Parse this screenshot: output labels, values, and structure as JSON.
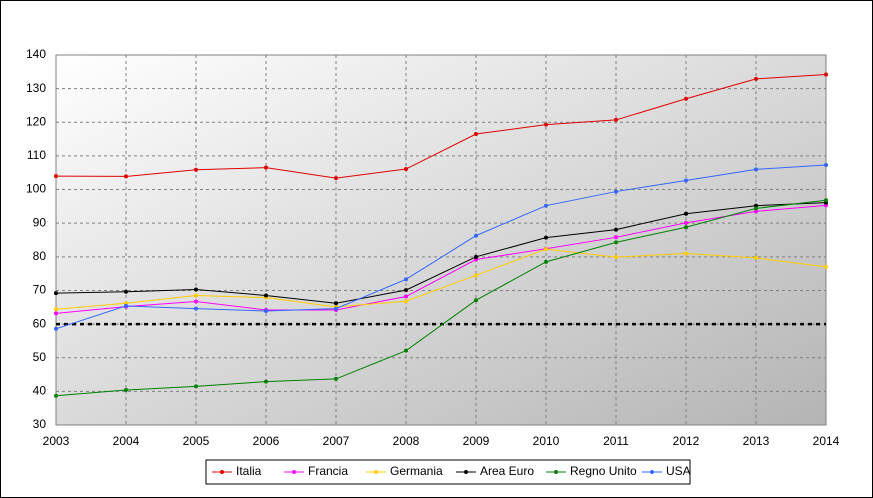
{
  "chart_data": {
    "type": "line",
    "x": [
      2003,
      2004,
      2005,
      2006,
      2007,
      2008,
      2009,
      2010,
      2011,
      2012,
      2013,
      2014
    ],
    "xlim": [
      2003,
      2014
    ],
    "xticks": [
      2003,
      2004,
      2005,
      2006,
      2007,
      2008,
      2009,
      2010,
      2011,
      2012,
      2013,
      2014
    ],
    "ylim": [
      30,
      140
    ],
    "yticks": [
      30,
      40,
      50,
      60,
      70,
      80,
      90,
      100,
      110,
      120,
      130,
      140
    ],
    "grid": true,
    "legend": "bottom",
    "reference_line": {
      "value": 60,
      "color": "#000000"
    },
    "series": [
      {
        "name": "Italia",
        "color": "#e00000",
        "values": [
          104.0,
          103.9,
          105.9,
          106.5,
          103.4,
          106.1,
          116.5,
          119.3,
          120.7,
          127.0,
          132.9,
          134.2
        ]
      },
      {
        "name": "Francia",
        "color": "#ff00ff",
        "values": [
          63.2,
          65.2,
          66.7,
          64.2,
          64.2,
          68.2,
          79.2,
          82.4,
          85.8,
          90.1,
          93.5,
          95.3
        ]
      },
      {
        "name": "Germania",
        "color": "#ffcc00",
        "values": [
          64.4,
          66.2,
          68.5,
          67.9,
          65.1,
          66.8,
          74.5,
          82.3,
          79.9,
          81.0,
          79.7,
          77.0
        ]
      },
      {
        "name": "Area Euro",
        "color": "#000000",
        "values": [
          69.2,
          69.6,
          70.3,
          68.5,
          66.2,
          70.1,
          80.0,
          85.7,
          88.1,
          92.8,
          95.2,
          96.1
        ]
      },
      {
        "name": "Regno Unito",
        "color": "#008000",
        "values": [
          38.7,
          40.4,
          41.5,
          42.9,
          43.7,
          52.1,
          67.1,
          78.5,
          84.3,
          88.8,
          94.4,
          96.8
        ]
      },
      {
        "name": "USA",
        "color": "#3366ff",
        "values": [
          58.6,
          65.4,
          64.6,
          63.9,
          64.6,
          73.3,
          86.3,
          95.2,
          99.4,
          102.7,
          106.0,
          107.3
        ]
      }
    ]
  }
}
